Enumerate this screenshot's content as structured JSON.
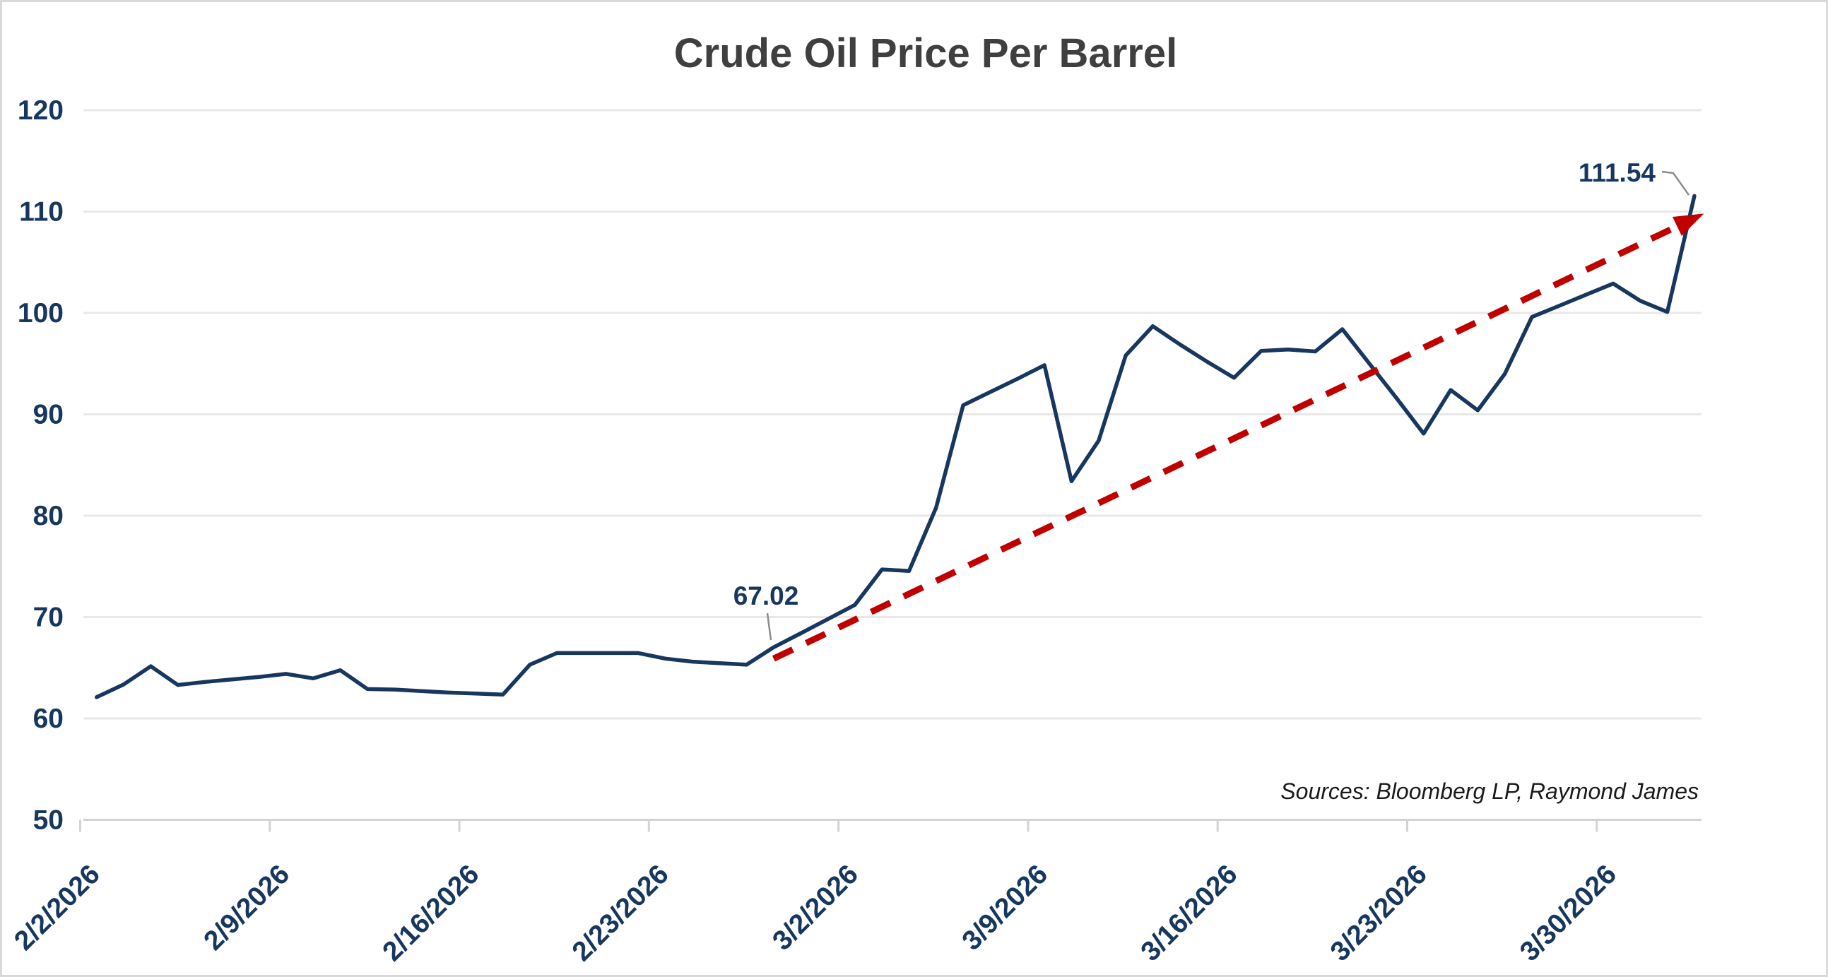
{
  "title": "Crude Oil Price Per Barrel",
  "source_note": "Sources: Bloomberg LP, Raymond James",
  "colors": {
    "series_line": "#17375E",
    "trend_line": "#C00000",
    "axis_labels": "#17375E",
    "title_text": "#3F3F3F",
    "source_text": "#1A1A1A",
    "gridline": "#E8E8E8",
    "axis_line": "#D3D3D3",
    "leader_line": "#8C8C8C",
    "background": "#FFFFFF",
    "border": "#D9D9D9"
  },
  "chart_data": {
    "type": "line",
    "title": "Crude Oil Price Per Barrel",
    "xlabel": "",
    "ylabel": "",
    "ylim": [
      50,
      120
    ],
    "y_ticks": [
      50,
      60,
      70,
      80,
      90,
      100,
      110,
      120
    ],
    "x_tick_labels": [
      "2/2/2026",
      "2/9/2026",
      "2/16/2026",
      "2/23/2026",
      "3/2/2026",
      "3/9/2026",
      "3/16/2026",
      "3/23/2026",
      "3/30/2026"
    ],
    "grid": true,
    "legend": false,
    "dates": [
      "2/2/2026",
      "2/3/2026",
      "2/4/2026",
      "2/5/2026",
      "2/6/2026",
      "2/7/2026",
      "2/8/2026",
      "2/9/2026",
      "2/10/2026",
      "2/11/2026",
      "2/12/2026",
      "2/13/2026",
      "2/14/2026",
      "2/15/2026",
      "2/16/2026",
      "2/17/2026",
      "2/18/2026",
      "2/19/2026",
      "2/20/2026",
      "2/21/2026",
      "2/22/2026",
      "2/23/2026",
      "2/24/2026",
      "2/25/2026",
      "2/26/2026",
      "2/27/2026",
      "2/28/2026",
      "3/1/2026",
      "3/2/2026",
      "3/3/2026",
      "3/4/2026",
      "3/5/2026",
      "3/6/2026",
      "3/7/2026",
      "3/8/2026",
      "3/9/2026",
      "3/10/2026",
      "3/11/2026",
      "3/12/2026",
      "3/13/2026",
      "3/14/2026",
      "3/15/2026",
      "3/16/2026",
      "3/17/2026",
      "3/18/2026",
      "3/19/2026",
      "3/20/2026",
      "3/21/2026",
      "3/22/2026",
      "3/23/2026",
      "3/24/2026",
      "3/25/2026",
      "3/26/2026",
      "3/27/2026",
      "3/28/2026",
      "3/29/2026",
      "3/30/2026",
      "3/31/2026",
      "4/1/2026",
      "4/2/2026"
    ],
    "series": [
      {
        "name": "Crude oil price per barrel",
        "color": "#17375E",
        "values": [
          62.1,
          63.35,
          65.15,
          63.3,
          63.6,
          63.85,
          64.1,
          64.4,
          63.95,
          64.75,
          62.9,
          62.85,
          62.7,
          62.55,
          62.45,
          62.35,
          65.3,
          66.45,
          66.45,
          66.45,
          66.45,
          65.9,
          65.6,
          65.45,
          65.3,
          67.02,
          68.4,
          69.8,
          71.2,
          74.7,
          74.55,
          80.8,
          90.9,
          92.2,
          93.5,
          94.85,
          83.4,
          87.4,
          95.8,
          98.7,
          96.9,
          95.2,
          93.6,
          96.25,
          96.4,
          96.2,
          98.4,
          95.0,
          91.6,
          88.1,
          92.4,
          90.4,
          94.0,
          99.6,
          100.7,
          101.8,
          102.9,
          101.2,
          100.1,
          111.54
        ]
      }
    ],
    "trendline": {
      "color": "#C00000",
      "style": "dashed",
      "arrow": true,
      "start_date": "2/27/2026",
      "start_index": 25,
      "start_value": 65.9,
      "end_index": 59.35,
      "end_value": 109.8
    },
    "annotations": [
      {
        "text": "67.02",
        "date": "2/27/2026",
        "index": 25,
        "value": 67.02
      },
      {
        "text": "111.54",
        "date": "4/2/2026",
        "index": 59,
        "value": 111.54
      }
    ]
  }
}
